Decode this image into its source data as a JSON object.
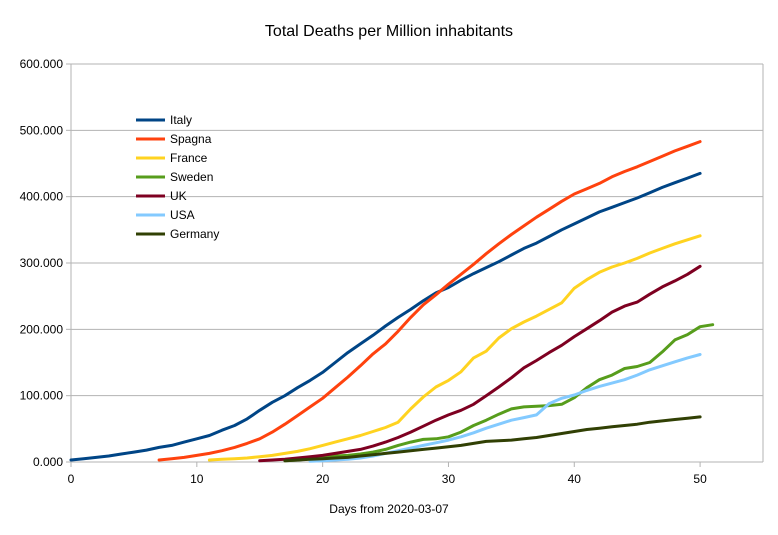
{
  "chart_data": {
    "type": "line",
    "title": "Total Deaths per Million inhabitants",
    "xlabel": "Days from 2020-03-07",
    "ylabel": "",
    "xlim": [
      0,
      55
    ],
    "ylim": [
      0,
      600
    ],
    "xticks": [
      0,
      10,
      20,
      30,
      40,
      50
    ],
    "yticks": [
      0,
      100,
      200,
      300,
      400,
      500,
      600
    ],
    "xtick_labels": [
      "0",
      "10",
      "20",
      "30",
      "40",
      "50"
    ],
    "ytick_labels": [
      "0.000",
      "100.000",
      "200.000",
      "300.000",
      "400.000",
      "500.000",
      "600.000"
    ],
    "grid": "horizontal",
    "legend_position": "top-left",
    "series": [
      {
        "name": "Italy",
        "color": "#004586",
        "points": [
          [
            0,
            3
          ],
          [
            1,
            5
          ],
          [
            2,
            7
          ],
          [
            3,
            9
          ],
          [
            4,
            12
          ],
          [
            5,
            15
          ],
          [
            6,
            18
          ],
          [
            7,
            22
          ],
          [
            8,
            25
          ],
          [
            9,
            30
          ],
          [
            10,
            35
          ],
          [
            11,
            40
          ],
          [
            12,
            48
          ],
          [
            13,
            55
          ],
          [
            14,
            65
          ],
          [
            15,
            78
          ],
          [
            16,
            90
          ],
          [
            17,
            100
          ],
          [
            18,
            112
          ],
          [
            19,
            123
          ],
          [
            20,
            135
          ],
          [
            21,
            150
          ],
          [
            22,
            165
          ],
          [
            23,
            178
          ],
          [
            24,
            191
          ],
          [
            25,
            205
          ],
          [
            26,
            218
          ],
          [
            27,
            230
          ],
          [
            28,
            243
          ],
          [
            29,
            255
          ],
          [
            30,
            263
          ],
          [
            31,
            274
          ],
          [
            32,
            284
          ],
          [
            33,
            293
          ],
          [
            34,
            302
          ],
          [
            35,
            312
          ],
          [
            36,
            322
          ],
          [
            37,
            330
          ],
          [
            38,
            340
          ],
          [
            39,
            350
          ],
          [
            40,
            359
          ],
          [
            41,
            368
          ],
          [
            42,
            377
          ],
          [
            43,
            384
          ],
          [
            44,
            391
          ],
          [
            45,
            398
          ],
          [
            46,
            406
          ],
          [
            47,
            414
          ],
          [
            48,
            421
          ],
          [
            49,
            428
          ],
          [
            50,
            435
          ]
        ]
      },
      {
        "name": "Spagna",
        "color": "#ff420e",
        "points": [
          [
            7,
            3
          ],
          [
            8,
            5
          ],
          [
            9,
            7
          ],
          [
            10,
            10
          ],
          [
            11,
            13
          ],
          [
            12,
            17
          ],
          [
            13,
            22
          ],
          [
            14,
            28
          ],
          [
            15,
            35
          ],
          [
            16,
            45
          ],
          [
            17,
            57
          ],
          [
            18,
            70
          ],
          [
            19,
            83
          ],
          [
            20,
            96
          ],
          [
            21,
            112
          ],
          [
            22,
            128
          ],
          [
            23,
            145
          ],
          [
            24,
            163
          ],
          [
            25,
            178
          ],
          [
            26,
            197
          ],
          [
            27,
            218
          ],
          [
            28,
            237
          ],
          [
            29,
            252
          ],
          [
            30,
            268
          ],
          [
            31,
            283
          ],
          [
            32,
            298
          ],
          [
            33,
            314
          ],
          [
            34,
            329
          ],
          [
            35,
            343
          ],
          [
            36,
            356
          ],
          [
            37,
            369
          ],
          [
            38,
            381
          ],
          [
            39,
            393
          ],
          [
            40,
            404
          ],
          [
            41,
            412
          ],
          [
            42,
            420
          ],
          [
            43,
            430
          ],
          [
            44,
            438
          ],
          [
            45,
            445
          ],
          [
            46,
            453
          ],
          [
            47,
            461
          ],
          [
            48,
            469
          ],
          [
            49,
            476
          ],
          [
            50,
            483
          ]
        ]
      },
      {
        "name": "France",
        "color": "#ffd320",
        "points": [
          [
            11,
            3
          ],
          [
            12,
            4
          ],
          [
            13,
            5
          ],
          [
            14,
            6
          ],
          [
            15,
            8
          ],
          [
            16,
            10
          ],
          [
            17,
            13
          ],
          [
            18,
            16
          ],
          [
            19,
            20
          ],
          [
            20,
            25
          ],
          [
            21,
            30
          ],
          [
            22,
            35
          ],
          [
            23,
            40
          ],
          [
            24,
            46
          ],
          [
            25,
            52
          ],
          [
            26,
            60
          ],
          [
            27,
            80
          ],
          [
            28,
            98
          ],
          [
            29,
            113
          ],
          [
            30,
            123
          ],
          [
            31,
            136
          ],
          [
            32,
            157
          ],
          [
            33,
            167
          ],
          [
            34,
            187
          ],
          [
            35,
            201
          ],
          [
            36,
            211
          ],
          [
            37,
            220
          ],
          [
            38,
            230
          ],
          [
            39,
            240
          ],
          [
            40,
            262
          ],
          [
            41,
            275
          ],
          [
            42,
            286
          ],
          [
            43,
            294
          ],
          [
            44,
            300
          ],
          [
            45,
            307
          ],
          [
            46,
            315
          ],
          [
            47,
            322
          ],
          [
            48,
            329
          ],
          [
            49,
            335
          ],
          [
            50,
            341
          ]
        ]
      },
      {
        "name": "Sweden",
        "color": "#579d1c",
        "points": [
          [
            17,
            2
          ],
          [
            18,
            3
          ],
          [
            19,
            5
          ],
          [
            20,
            7
          ],
          [
            21,
            9
          ],
          [
            22,
            10
          ],
          [
            23,
            12
          ],
          [
            24,
            15
          ],
          [
            25,
            19
          ],
          [
            26,
            25
          ],
          [
            27,
            30
          ],
          [
            28,
            34
          ],
          [
            29,
            35
          ],
          [
            30,
            38
          ],
          [
            31,
            45
          ],
          [
            32,
            55
          ],
          [
            33,
            63
          ],
          [
            34,
            72
          ],
          [
            35,
            80
          ],
          [
            36,
            83
          ],
          [
            37,
            84
          ],
          [
            38,
            85
          ],
          [
            39,
            87
          ],
          [
            40,
            97
          ],
          [
            41,
            112
          ],
          [
            42,
            124
          ],
          [
            43,
            131
          ],
          [
            44,
            141
          ],
          [
            45,
            144
          ],
          [
            46,
            150
          ],
          [
            47,
            166
          ],
          [
            48,
            184
          ],
          [
            49,
            192
          ],
          [
            50,
            204
          ],
          [
            51,
            207
          ]
        ]
      },
      {
        "name": "UK",
        "color": "#7e0021",
        "points": [
          [
            15,
            2
          ],
          [
            16,
            3
          ],
          [
            17,
            4
          ],
          [
            18,
            6
          ],
          [
            19,
            8
          ],
          [
            20,
            10
          ],
          [
            21,
            13
          ],
          [
            22,
            16
          ],
          [
            23,
            19
          ],
          [
            24,
            24
          ],
          [
            25,
            30
          ],
          [
            26,
            37
          ],
          [
            27,
            45
          ],
          [
            28,
            54
          ],
          [
            29,
            63
          ],
          [
            30,
            71
          ],
          [
            31,
            78
          ],
          [
            32,
            87
          ],
          [
            33,
            100
          ],
          [
            34,
            113
          ],
          [
            35,
            127
          ],
          [
            36,
            142
          ],
          [
            37,
            153
          ],
          [
            38,
            165
          ],
          [
            39,
            176
          ],
          [
            40,
            189
          ],
          [
            41,
            201
          ],
          [
            42,
            213
          ],
          [
            43,
            226
          ],
          [
            44,
            235
          ],
          [
            45,
            241
          ],
          [
            46,
            253
          ],
          [
            47,
            264
          ],
          [
            48,
            273
          ],
          [
            49,
            283
          ],
          [
            50,
            295
          ]
        ]
      },
      {
        "name": "USA",
        "color": "#83caff",
        "points": [
          [
            19,
            1
          ],
          [
            20,
            2
          ],
          [
            21,
            3
          ],
          [
            22,
            4
          ],
          [
            23,
            6
          ],
          [
            24,
            9
          ],
          [
            25,
            13
          ],
          [
            26,
            17
          ],
          [
            27,
            21
          ],
          [
            28,
            25
          ],
          [
            29,
            29
          ],
          [
            30,
            33
          ],
          [
            31,
            38
          ],
          [
            32,
            44
          ],
          [
            33,
            51
          ],
          [
            34,
            57
          ],
          [
            35,
            63
          ],
          [
            36,
            67
          ],
          [
            37,
            71
          ],
          [
            38,
            88
          ],
          [
            39,
            96
          ],
          [
            40,
            101
          ],
          [
            41,
            108
          ],
          [
            42,
            114
          ],
          [
            43,
            119
          ],
          [
            44,
            124
          ],
          [
            45,
            131
          ],
          [
            46,
            139
          ],
          [
            47,
            145
          ],
          [
            48,
            151
          ],
          [
            49,
            157
          ],
          [
            50,
            162
          ]
        ]
      },
      {
        "name": "Germany",
        "color": "#314004",
        "points": [
          [
            17,
            2
          ],
          [
            18,
            3
          ],
          [
            19,
            4
          ],
          [
            20,
            5
          ],
          [
            21,
            6
          ],
          [
            22,
            7
          ],
          [
            23,
            9
          ],
          [
            24,
            11
          ],
          [
            25,
            13
          ],
          [
            26,
            15
          ],
          [
            27,
            17
          ],
          [
            28,
            19
          ],
          [
            29,
            21
          ],
          [
            30,
            23
          ],
          [
            31,
            25
          ],
          [
            32,
            28
          ],
          [
            33,
            31
          ],
          [
            34,
            32
          ],
          [
            35,
            33
          ],
          [
            36,
            35
          ],
          [
            37,
            37
          ],
          [
            38,
            40
          ],
          [
            39,
            43
          ],
          [
            40,
            46
          ],
          [
            41,
            49
          ],
          [
            42,
            51
          ],
          [
            43,
            53
          ],
          [
            44,
            55
          ],
          [
            45,
            57
          ],
          [
            46,
            60
          ],
          [
            47,
            62
          ],
          [
            48,
            64
          ],
          [
            49,
            66
          ],
          [
            50,
            68
          ]
        ]
      }
    ]
  }
}
